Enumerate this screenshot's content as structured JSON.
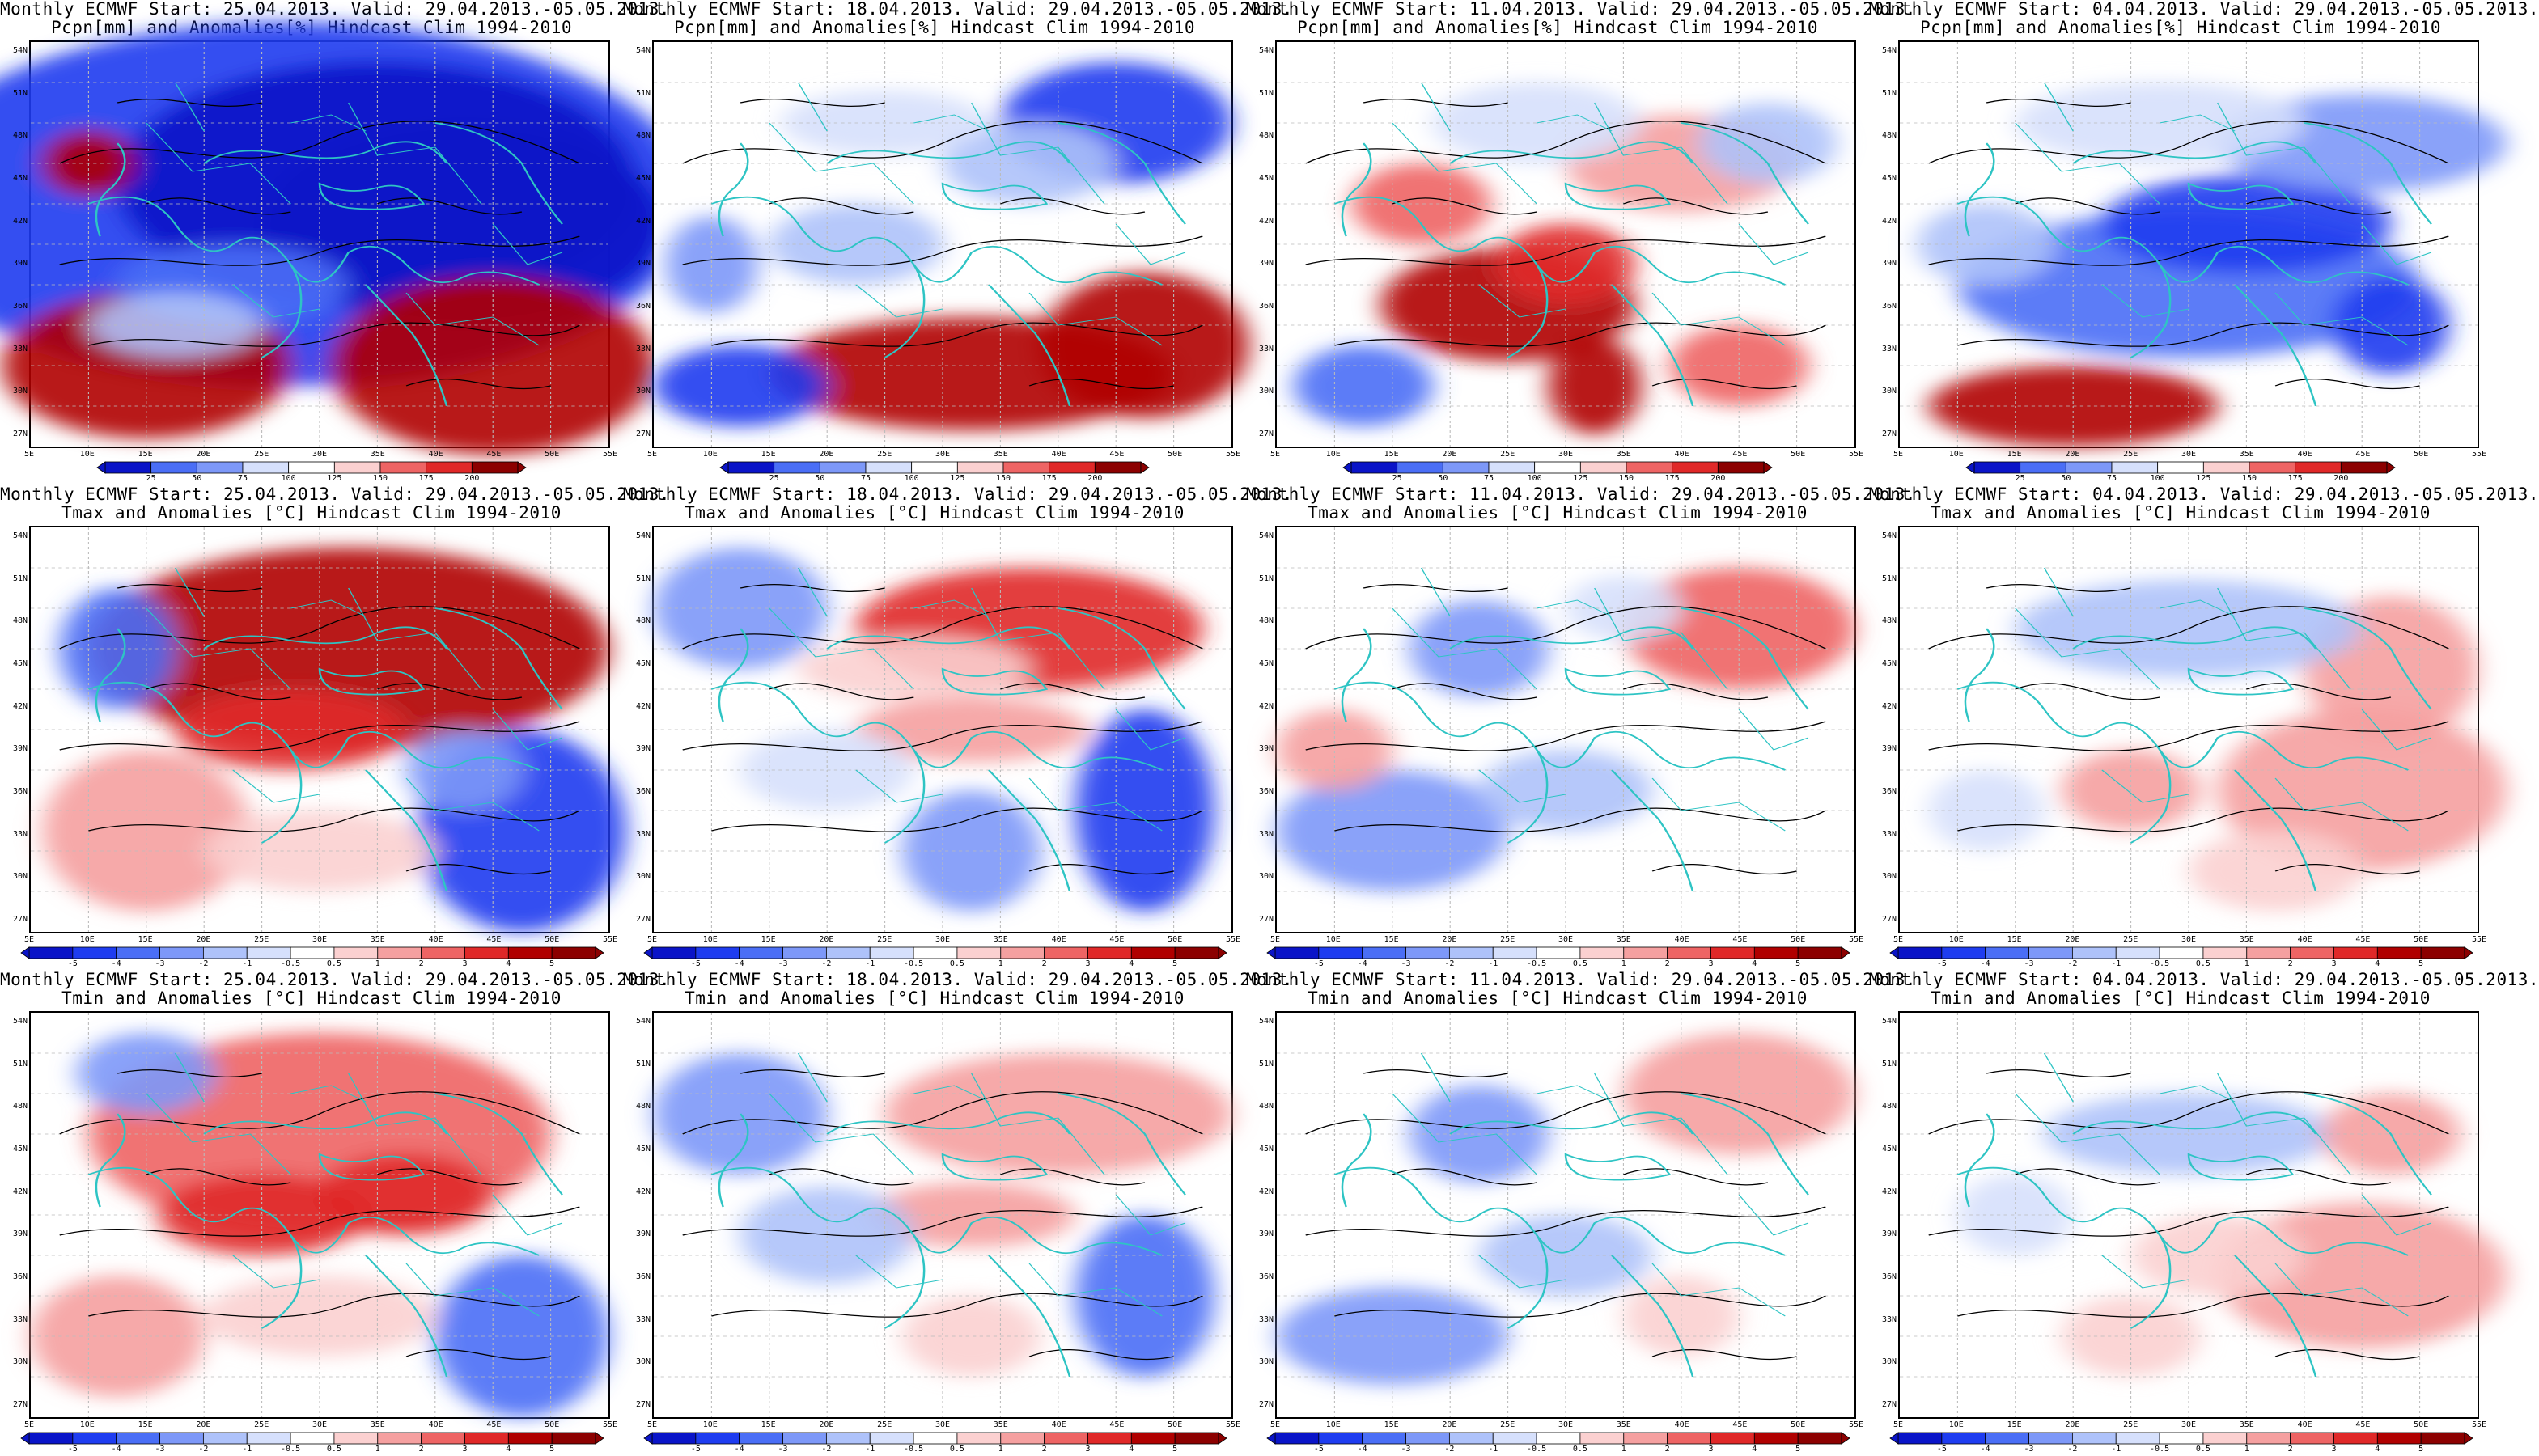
{
  "colors": {
    "precip_scale": [
      "#0a14c8",
      "#1e3cf0",
      "#4a6ef6",
      "#7d98f8",
      "#aec2fa",
      "#d6e0fc",
      "#ffffff",
      "#ffffff",
      "#fbd0d0",
      "#f5a0a0",
      "#ee6464",
      "#e02828",
      "#b00000",
      "#8c0000"
    ],
    "temp_scale": [
      "#0a14c8",
      "#1e3cf0",
      "#4a6ef6",
      "#7d98f8",
      "#aec2fa",
      "#d6e0fc",
      "#ffffff",
      "#ffffff",
      "#fbd0d0",
      "#f5a0a0",
      "#ee6464",
      "#e02828",
      "#b00000",
      "#8c0000"
    ],
    "coast": "#2ec4c4",
    "contour": "#000000"
  },
  "colorbars": {
    "precip": [
      "25",
      "50",
      "75",
      "100",
      "125",
      "150",
      "175",
      "200"
    ],
    "temp": [
      "-5",
      "-4",
      "-3",
      "-2",
      "-1",
      "-0.5",
      "0.5",
      "1",
      "2",
      "3",
      "4",
      "5"
    ]
  },
  "axes": {
    "lat_labels": [
      "54N",
      "51N",
      "48N",
      "45N",
      "42N",
      "39N",
      "36N",
      "33N",
      "30N",
      "27N"
    ],
    "lon_labels": [
      "5E",
      "10E",
      "15E",
      "20E",
      "25E",
      "30E",
      "35E",
      "40E",
      "45E",
      "50E",
      "55E"
    ]
  },
  "rows": [
    {
      "variable": "precip",
      "line2": "Pcpn[mm] and Anomalies[%] Hindcast Clim 1994-2010",
      "panels": [
        {
          "line1": "Monthly ECMWF Start: 25.04.2013. Valid: 29.04.2013.-05.05.2013.",
          "pattern": "p1"
        },
        {
          "line1": "Monthly ECMWF Start: 18.04.2013. Valid: 29.04.2013.-05.05.2013.",
          "pattern": "p2"
        },
        {
          "line1": "Monthly ECMWF Start: 11.04.2013. Valid: 29.04.2013.-05.05.2013.",
          "pattern": "p3"
        },
        {
          "line1": "Monthly ECMWF Start: 04.04.2013. Valid: 29.04.2013.-05.05.2013.",
          "pattern": "p4"
        }
      ]
    },
    {
      "variable": "tmax",
      "line2": "Tmax and Anomalies [°C] Hindcast Clim 1994-2010",
      "panels": [
        {
          "line1": "Monthly ECMWF Start: 25.04.2013. Valid: 29.04.2013.-05.05.2013.",
          "pattern": "t1"
        },
        {
          "line1": "Monthly ECMWF Start: 18.04.2013. Valid: 29.04.2013.-05.05.2013.",
          "pattern": "t2"
        },
        {
          "line1": "Monthly ECMWF Start: 11.04.2013. Valid: 29.04.2013.-05.05.2013.",
          "pattern": "t3"
        },
        {
          "line1": "Monthly ECMWF Start: 04.04.2013. Valid: 29.04.2013.-05.05.2013.",
          "pattern": "t4"
        }
      ]
    },
    {
      "variable": "tmin",
      "line2": "Tmin and Anomalies [°C] Hindcast Clim 1994-2010",
      "panels": [
        {
          "line1": "Monthly ECMWF Start: 25.04.2013. Valid: 29.04.2013.-05.05.2013.",
          "pattern": "n1"
        },
        {
          "line1": "Monthly ECMWF Start: 18.04.2013. Valid: 29.04.2013.-05.05.2013.",
          "pattern": "n2"
        },
        {
          "line1": "Monthly ECMWF Start: 11.04.2013. Valid: 29.04.2013.-05.05.2013.",
          "pattern": "n3"
        },
        {
          "line1": "Monthly ECMWF Start: 04.04.2013. Valid: 29.04.2013.-05.05.2013.",
          "pattern": "n4"
        }
      ]
    }
  ]
}
